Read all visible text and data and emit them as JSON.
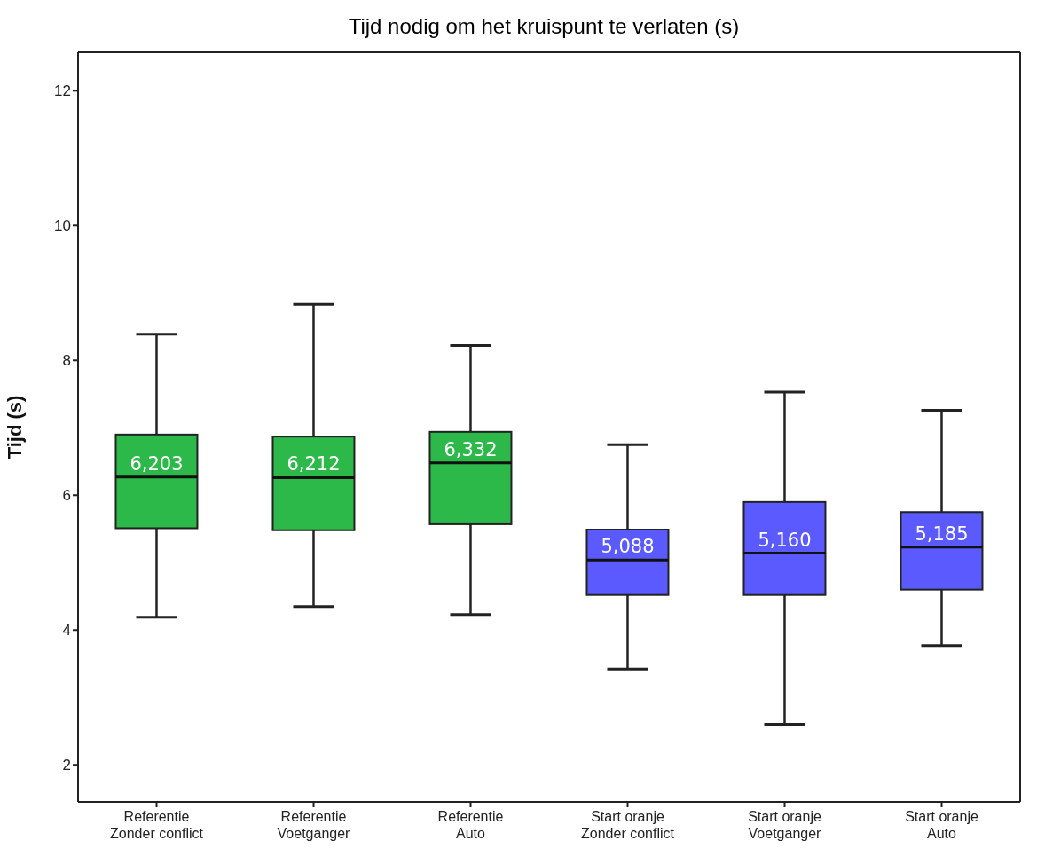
{
  "chart_data": {
    "type": "box",
    "title": "Tijd nodig om het kruispunt te verlaten (s)",
    "ylabel": "Tijd (s)",
    "categories": [
      "Referentie\nZonder conflict",
      "Referentie\nVoetganger",
      "Referentie\nAuto",
      "Start oranje\nZonder conflict",
      "Start oranje\nVoetganger",
      "Start oranje\nAuto"
    ],
    "colors": [
      "#2db84a",
      "#2db84a",
      "#2db84a",
      "#5a5aff",
      "#5a5aff",
      "#5a5aff"
    ],
    "boxes": [
      {
        "low": 4.19,
        "q1": 5.51,
        "median": 6.27,
        "q3": 6.9,
        "high": 8.39
      },
      {
        "low": 4.35,
        "q1": 5.48,
        "median": 6.26,
        "q3": 6.87,
        "high": 8.83
      },
      {
        "low": 4.23,
        "q1": 5.57,
        "median": 6.48,
        "q3": 6.94,
        "high": 8.22
      },
      {
        "low": 3.42,
        "q1": 4.52,
        "median": 5.04,
        "q3": 5.49,
        "high": 6.75
      },
      {
        "low": 2.6,
        "q1": 4.52,
        "median": 5.14,
        "q3": 5.9,
        "high": 7.53
      },
      {
        "low": 3.77,
        "q1": 4.6,
        "median": 5.23,
        "q3": 5.75,
        "high": 7.26
      }
    ],
    "annotations": [
      "6,203",
      "6,212",
      "6,332",
      "5,088",
      "5,160",
      "5,185"
    ],
    "ylim": [
      1.45,
      12.57
    ],
    "yticks": [
      2,
      4,
      6,
      8,
      10,
      12
    ],
    "grid": false,
    "legend": false
  }
}
